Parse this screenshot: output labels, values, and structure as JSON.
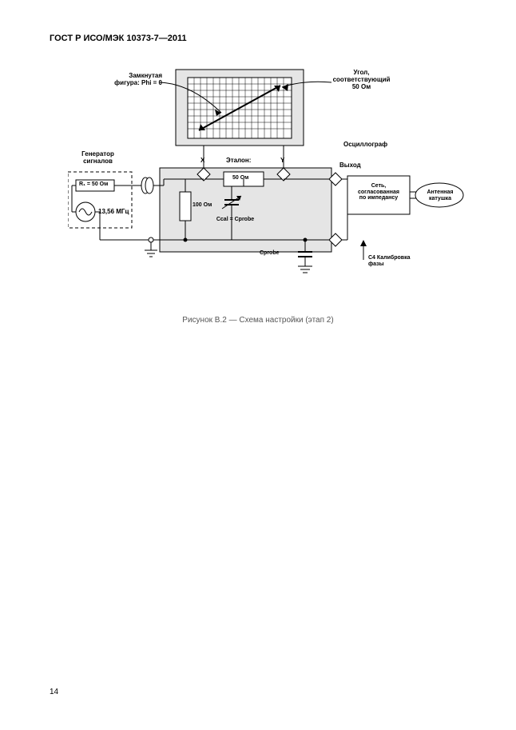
{
  "header": "ГОСТ Р ИСО/МЭК 10373-7—2011",
  "page_number": "14",
  "caption": "Рисунок В.2 — Схема настройки (этап 2)",
  "labels": {
    "closed_fig": "Замкнутая\nфигура: Phi = 0",
    "angle": "Угол,\nсоответствующий\n50 Ом",
    "oscilloscope": "Осциллограф",
    "generator": "Генератор\nсигналов",
    "r1": "R₁ = 50 Ом",
    "freq": "13,56 МГц",
    "x": "X",
    "y": "Y",
    "etalon": "Эталон:",
    "r50": "50 Ом",
    "r100": "100 Ом",
    "ccal": "Cсal = Cprobe",
    "cprobe": "Cprobe",
    "output": "Выход",
    "network": "Сеть,\nсогласованная\nпо импедансу",
    "antenna": "Антенная\nкатушка",
    "phase": "С4 Калибровка\nфазы"
  },
  "colors": {
    "bg": "#ffffff",
    "gray": "#e5e5e5",
    "line": "#000000"
  }
}
